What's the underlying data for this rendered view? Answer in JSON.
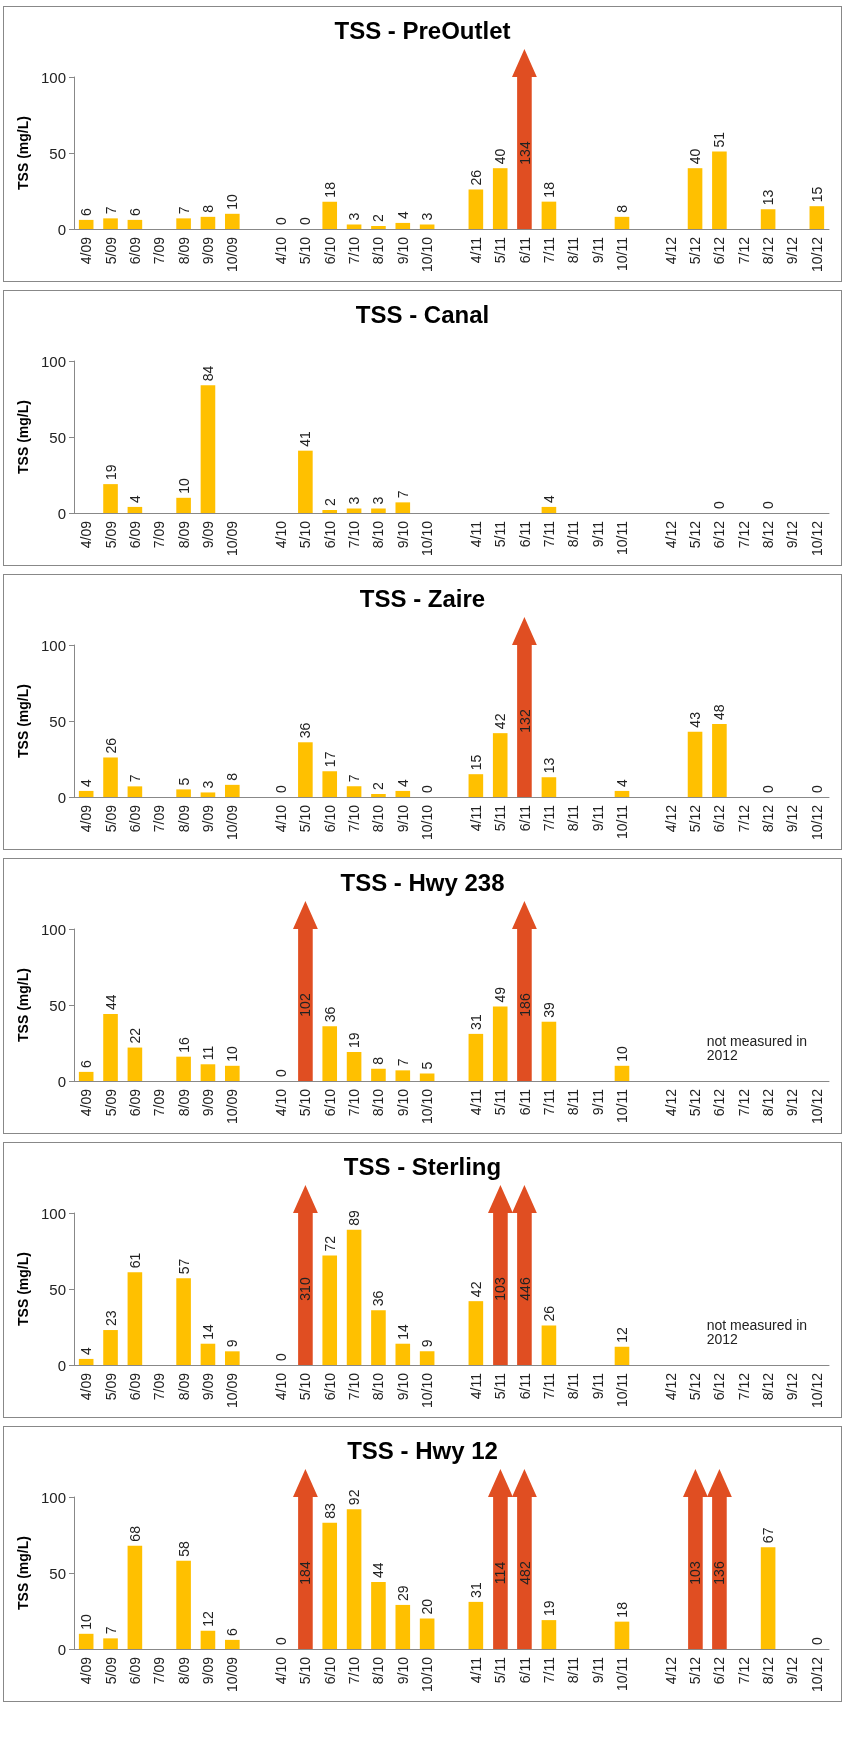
{
  "chart_data": [
    {
      "type": "bar",
      "title": "TSS - PreOutlet",
      "ylabel": "TSS (mg/L)",
      "categories": [
        "4/09",
        "5/09",
        "6/09",
        "7/09",
        "8/09",
        "9/09",
        "10/09",
        null,
        "4/10",
        "5/10",
        "6/10",
        "7/10",
        "8/10",
        "9/10",
        "10/10",
        null,
        "4/11",
        "5/11",
        "6/11",
        "7/11",
        "8/11",
        "9/11",
        "10/11",
        null,
        "4/12",
        "5/12",
        "6/12",
        "7/12",
        "8/12",
        "9/12",
        "10/12"
      ],
      "values": [
        6,
        7,
        6,
        null,
        7,
        8,
        10,
        null,
        0,
        0,
        18,
        3,
        2,
        4,
        3,
        null,
        26,
        40,
        null,
        18,
        null,
        null,
        8,
        null,
        null,
        40,
        51,
        null,
        13,
        null,
        15
      ],
      "value_labels": [
        "6",
        "7",
        "6",
        null,
        "7",
        "8",
        "10",
        null,
        "0",
        "0",
        "18",
        "3",
        "2",
        "4",
        "3",
        null,
        "26",
        "40",
        "134",
        "18",
        null,
        null,
        "8",
        null,
        null,
        "40",
        "51",
        null,
        "13",
        null,
        "15"
      ],
      "colors": [
        "#ffc000",
        "#ffc000",
        "#ffc000",
        null,
        "#ffc000",
        "#ffc000",
        "#ffc000",
        null,
        "#ffc000",
        "#ffc000",
        "#ffc000",
        "#ffc000",
        "#ffc000",
        "#ffc000",
        "#ffc000",
        null,
        "#ffc000",
        "#ffc000",
        "#e04e22",
        "#ffc000",
        null,
        null,
        "#ffc000",
        null,
        null,
        "#ffc000",
        "#ffc000",
        null,
        "#ffc000",
        null,
        "#ffc000"
      ],
      "ylim": [
        0,
        100
      ],
      "yticks": [
        0,
        50,
        100
      ]
    },
    {
      "type": "bar",
      "title": "TSS - Canal",
      "ylabel": "TSS (mg/L)",
      "categories": [
        "4/09",
        "5/09",
        "6/09",
        "7/09",
        "8/09",
        "9/09",
        "10/09",
        null,
        "4/10",
        "5/10",
        "6/10",
        "7/10",
        "8/10",
        "9/10",
        "10/10",
        null,
        "4/11",
        "5/11",
        "6/11",
        "7/11",
        "8/11",
        "9/11",
        "10/11",
        null,
        "4/12",
        "5/12",
        "6/12",
        "7/12",
        "8/12",
        "9/12",
        "10/12"
      ],
      "values": [
        null,
        19,
        4,
        null,
        10,
        84,
        null,
        null,
        null,
        41,
        2,
        3,
        3,
        7,
        null,
        null,
        null,
        null,
        null,
        4,
        null,
        null,
        null,
        null,
        null,
        null,
        0,
        null,
        0,
        null,
        null
      ],
      "value_labels": [
        null,
        "19",
        "4",
        null,
        "10",
        "84",
        null,
        null,
        null,
        "41",
        "2",
        "3",
        "3",
        "7",
        null,
        null,
        null,
        null,
        null,
        "4",
        null,
        null,
        null,
        null,
        null,
        null,
        "0",
        null,
        "0",
        null,
        null
      ],
      "colors": [
        null,
        "#ffc000",
        "#ffc000",
        null,
        "#ffc000",
        "#ffc000",
        null,
        null,
        null,
        "#ffc000",
        "#ffc000",
        "#ffc000",
        "#ffc000",
        "#ffc000",
        null,
        null,
        null,
        null,
        null,
        "#ffc000",
        null,
        null,
        null,
        null,
        null,
        null,
        "#ffc000",
        null,
        "#ffc000",
        null,
        null
      ],
      "ylim": [
        0,
        100
      ],
      "yticks": [
        0,
        50,
        100
      ]
    },
    {
      "type": "bar",
      "title": "TSS - Zaire",
      "ylabel": "TSS (mg/L)",
      "categories": [
        "4/09",
        "5/09",
        "6/09",
        "7/09",
        "8/09",
        "9/09",
        "10/09",
        null,
        "4/10",
        "5/10",
        "6/10",
        "7/10",
        "8/10",
        "9/10",
        "10/10",
        null,
        "4/11",
        "5/11",
        "6/11",
        "7/11",
        "8/11",
        "9/11",
        "10/11",
        null,
        "4/12",
        "5/12",
        "6/12",
        "7/12",
        "8/12",
        "9/12",
        "10/12"
      ],
      "values": [
        4,
        26,
        7,
        null,
        5,
        3,
        8,
        null,
        0,
        36,
        17,
        7,
        2,
        4,
        0,
        null,
        15,
        42,
        null,
        13,
        null,
        null,
        4,
        null,
        null,
        43,
        48,
        null,
        0,
        null,
        0
      ],
      "value_labels": [
        "4",
        "26",
        "7",
        null,
        "5",
        "3",
        "8",
        null,
        "0",
        "36",
        "17",
        "7",
        "2",
        "4",
        "0",
        null,
        "15",
        "42",
        "132",
        "13",
        null,
        null,
        "4",
        null,
        null,
        "43",
        "48",
        null,
        "0",
        null,
        "0"
      ],
      "colors": [
        "#ffc000",
        "#ffc000",
        "#ffc000",
        null,
        "#ffc000",
        "#ffc000",
        "#ffc000",
        null,
        "#ffc000",
        "#ffc000",
        "#ffc000",
        "#ffc000",
        "#ffc000",
        "#ffc000",
        "#ffc000",
        null,
        "#ffc000",
        "#ffc000",
        "#e04e22",
        "#ffc000",
        null,
        null,
        "#ffc000",
        null,
        null,
        "#ffc000",
        "#ffc000",
        null,
        "#ffc000",
        null,
        "#ffc000"
      ],
      "ylim": [
        0,
        100
      ],
      "yticks": [
        0,
        50,
        100
      ]
    },
    {
      "type": "bar",
      "title": "TSS - Hwy 238",
      "ylabel": "TSS (mg/L)",
      "categories": [
        "4/09",
        "5/09",
        "6/09",
        "7/09",
        "8/09",
        "9/09",
        "10/09",
        null,
        "4/10",
        "5/10",
        "6/10",
        "7/10",
        "8/10",
        "9/10",
        "10/10",
        null,
        "4/11",
        "5/11",
        "6/11",
        "7/11",
        "8/11",
        "9/11",
        "10/11",
        null,
        "4/12",
        "5/12",
        "6/12",
        "7/12",
        "8/12",
        "9/12",
        "10/12"
      ],
      "values": [
        6,
        44,
        22,
        null,
        16,
        11,
        10,
        null,
        0,
        null,
        36,
        19,
        8,
        7,
        5,
        null,
        31,
        49,
        null,
        39,
        null,
        null,
        10,
        null,
        null,
        null,
        null,
        null,
        null,
        null,
        null
      ],
      "value_labels": [
        "6",
        "44",
        "22",
        null,
        "16",
        "11",
        "10",
        null,
        "0",
        "102",
        "36",
        "19",
        "8",
        "7",
        "5",
        null,
        "31",
        "49",
        "186",
        "39",
        null,
        null,
        "10",
        null,
        null,
        null,
        null,
        null,
        null,
        null,
        null
      ],
      "colors": [
        "#ffc000",
        "#ffc000",
        "#ffc000",
        null,
        "#ffc000",
        "#ffc000",
        "#ffc000",
        null,
        "#ffc000",
        "#e04e22",
        "#ffc000",
        "#ffc000",
        "#ffc000",
        "#ffc000",
        "#ffc000",
        null,
        "#ffc000",
        "#ffc000",
        "#e04e22",
        "#ffc000",
        null,
        null,
        "#ffc000",
        null,
        null,
        null,
        null,
        null,
        null,
        null,
        null
      ],
      "ylim": [
        0,
        100
      ],
      "yticks": [
        0,
        50,
        100
      ],
      "annotations": [
        "not measured in 2012"
      ]
    },
    {
      "type": "bar",
      "title": "TSS - Sterling",
      "ylabel": "TSS (mg/L)",
      "categories": [
        "4/09",
        "5/09",
        "6/09",
        "7/09",
        "8/09",
        "9/09",
        "10/09",
        null,
        "4/10",
        "5/10",
        "6/10",
        "7/10",
        "8/10",
        "9/10",
        "10/10",
        null,
        "4/11",
        "5/11",
        "6/11",
        "7/11",
        "8/11",
        "9/11",
        "10/11",
        null,
        "4/12",
        "5/12",
        "6/12",
        "7/12",
        "8/12",
        "9/12",
        "10/12"
      ],
      "values": [
        4,
        23,
        61,
        null,
        57,
        14,
        9,
        null,
        0,
        null,
        72,
        89,
        36,
        14,
        9,
        null,
        42,
        null,
        null,
        26,
        null,
        null,
        12,
        null,
        null,
        null,
        null,
        null,
        null,
        null,
        null
      ],
      "value_labels": [
        "4",
        "23",
        "61",
        null,
        "57",
        "14",
        "9",
        null,
        "0",
        "310",
        "72",
        "89",
        "36",
        "14",
        "9",
        null,
        "42",
        "103",
        "446",
        "26",
        null,
        null,
        "12",
        null,
        null,
        null,
        null,
        null,
        null,
        null,
        null
      ],
      "colors": [
        "#ffc000",
        "#ffc000",
        "#ffc000",
        null,
        "#ffc000",
        "#ffc000",
        "#ffc000",
        null,
        "#ffc000",
        "#e04e22",
        "#ffc000",
        "#ffc000",
        "#ffc000",
        "#ffc000",
        "#ffc000",
        null,
        "#ffc000",
        "#e04e22",
        "#e04e22",
        "#ffc000",
        null,
        null,
        "#ffc000",
        null,
        null,
        null,
        null,
        null,
        null,
        null,
        null
      ],
      "ylim": [
        0,
        100
      ],
      "yticks": [
        0,
        50,
        100
      ],
      "annotations": [
        "not measured in 2012"
      ]
    },
    {
      "type": "bar",
      "title": "TSS - Hwy 12",
      "ylabel": "TSS (mg/L)",
      "categories": [
        "4/09",
        "5/09",
        "6/09",
        "7/09",
        "8/09",
        "9/09",
        "10/09",
        null,
        "4/10",
        "5/10",
        "6/10",
        "7/10",
        "8/10",
        "9/10",
        "10/10",
        null,
        "4/11",
        "5/11",
        "6/11",
        "7/11",
        "8/11",
        "9/11",
        "10/11",
        null,
        "4/12",
        "5/12",
        "6/12",
        "7/12",
        "8/12",
        "9/12",
        "10/12"
      ],
      "values": [
        10,
        7,
        68,
        null,
        58,
        12,
        6,
        null,
        0,
        null,
        83,
        92,
        44,
        29,
        20,
        null,
        31,
        null,
        null,
        19,
        null,
        null,
        18,
        null,
        null,
        null,
        null,
        null,
        67,
        null,
        0
      ],
      "value_labels": [
        "10",
        "7",
        "68",
        null,
        "58",
        "12",
        "6",
        null,
        "0",
        "184",
        "83",
        "92",
        "44",
        "29",
        "20",
        null,
        "31",
        "114",
        "482",
        "19",
        null,
        null,
        "18",
        null,
        null,
        "103",
        "136",
        null,
        "67",
        null,
        "0"
      ],
      "colors": [
        "#ffc000",
        "#ffc000",
        "#ffc000",
        null,
        "#ffc000",
        "#ffc000",
        "#ffc000",
        null,
        "#ffc000",
        "#e04e22",
        "#ffc000",
        "#ffc000",
        "#ffc000",
        "#ffc000",
        "#ffc000",
        null,
        "#ffc000",
        "#e04e22",
        "#e04e22",
        "#ffc000",
        null,
        null,
        "#ffc000",
        null,
        null,
        "#e04e22",
        "#e04e22",
        null,
        "#ffc000",
        null,
        "#ffc000"
      ],
      "ylim": [
        0,
        100
      ],
      "yticks": [
        0,
        50,
        100
      ]
    }
  ]
}
